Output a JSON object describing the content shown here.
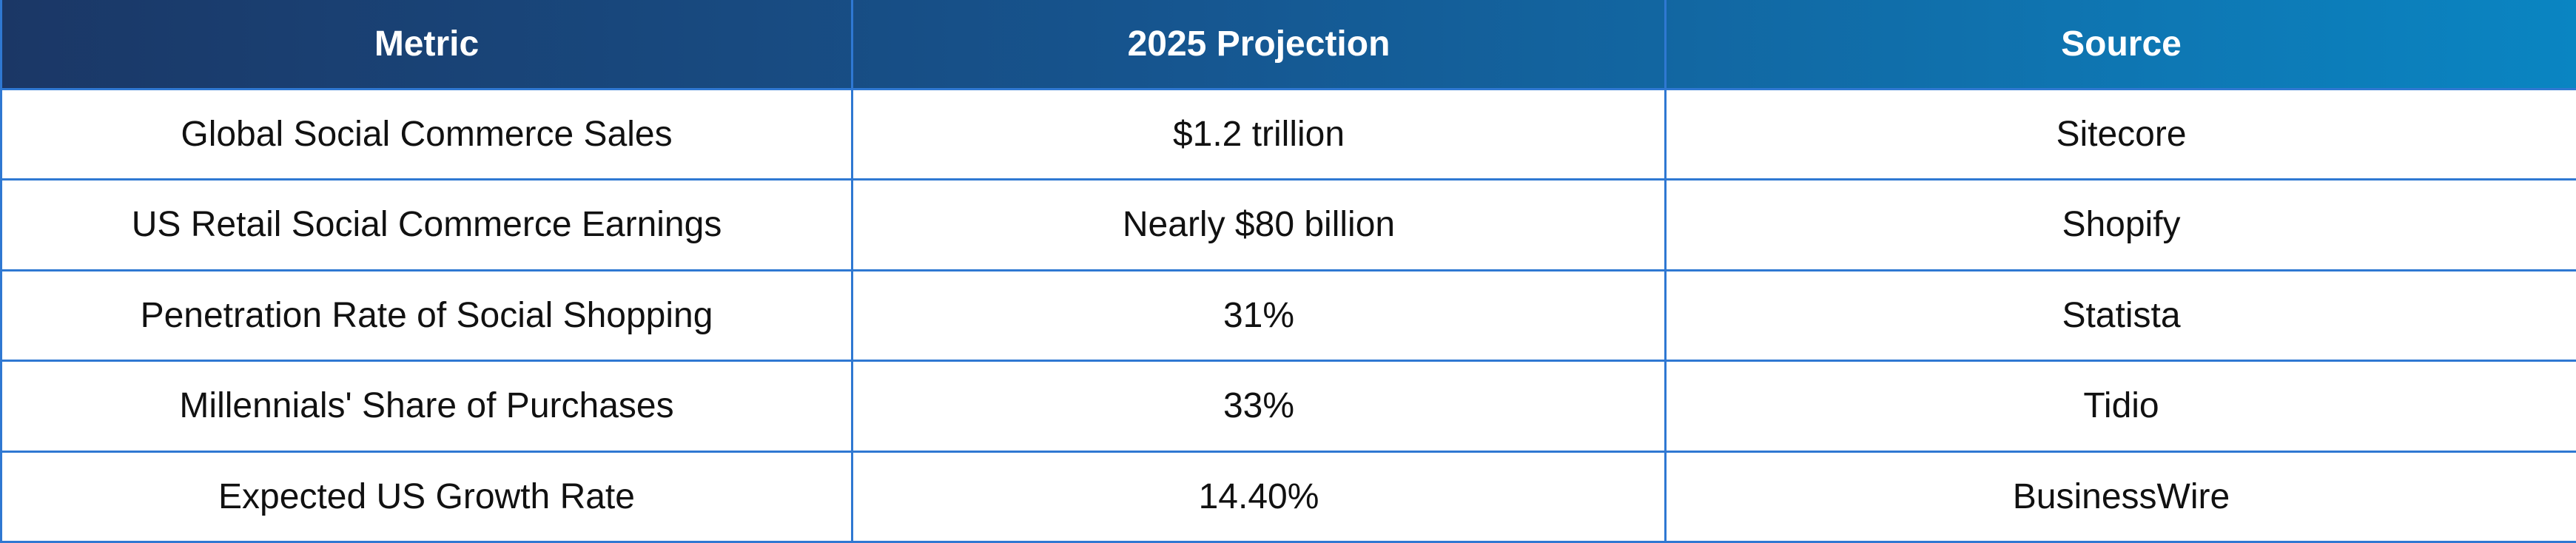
{
  "table": {
    "headers": [
      "Metric",
      "2025 Projection",
      "Source"
    ],
    "rows": [
      [
        "Global Social Commerce Sales",
        "$1.2 trillion",
        "Sitecore"
      ],
      [
        "US Retail Social Commerce Earnings",
        "Nearly $80 billion",
        "Shopify"
      ],
      [
        "Penetration Rate of Social Shopping",
        "31%",
        "Statista"
      ],
      [
        "Millennials' Share of Purchases",
        "33%",
        "Tidio"
      ],
      [
        "Expected US Growth Rate",
        "14.40%",
        "BusinessWire"
      ]
    ]
  },
  "colors": {
    "header_gradient_start": "#1b3766",
    "header_gradient_end": "#0a85c2",
    "border": "#2f78d2",
    "header_text": "#ffffff",
    "body_text": "#111111"
  }
}
